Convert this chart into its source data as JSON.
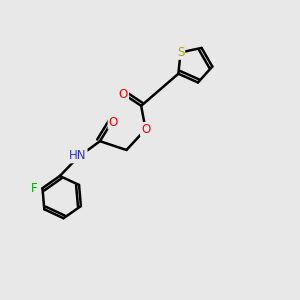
{
  "background_color": "#e8e8e8",
  "atom_colors": {
    "C": "#000000",
    "O": "#ff0000",
    "N": "#3333cc",
    "S": "#aaaa00",
    "F": "#00aa00",
    "H": "#000000"
  },
  "bond_color": "#000000",
  "bond_width": 1.8,
  "figsize": [
    3.0,
    3.0
  ],
  "dpi": 100,
  "xlim": [
    0,
    10
  ],
  "ylim": [
    0,
    10
  ]
}
